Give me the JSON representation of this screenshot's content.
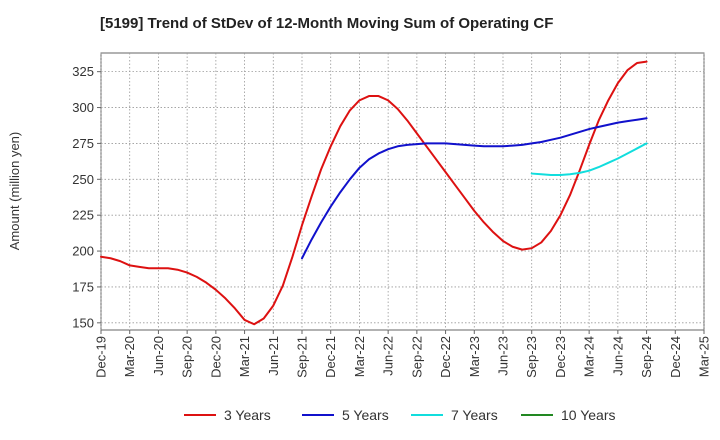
{
  "chart_data": {
    "type": "line",
    "title": "[5199]  Trend of StDev of 12-Month Moving Sum of Operating CF",
    "xlabel": "",
    "ylabel": "Amount (million yen)",
    "ylim": [
      145,
      338
    ],
    "yticks": [
      150,
      175,
      200,
      225,
      250,
      275,
      300,
      325
    ],
    "x_tick_labels": [
      "Dec-19",
      "Mar-20",
      "Jun-20",
      "Sep-20",
      "Dec-20",
      "Mar-21",
      "Jun-21",
      "Sep-21",
      "Dec-21",
      "Mar-22",
      "Jun-22",
      "Sep-22",
      "Dec-22",
      "Mar-23",
      "Jun-23",
      "Sep-23",
      "Dec-23",
      "Mar-24",
      "Jun-24",
      "Sep-24",
      "Dec-24",
      "Mar-25"
    ],
    "x_range": [
      "Dec-19",
      "Mar-25"
    ],
    "grid": true,
    "legend_position": "bottom",
    "series": [
      {
        "name": "3 Years",
        "color": "#dd1111",
        "x": [
          "Dec-19",
          "Jan-20",
          "Feb-20",
          "Mar-20",
          "Apr-20",
          "May-20",
          "Jun-20",
          "Jul-20",
          "Aug-20",
          "Sep-20",
          "Oct-20",
          "Nov-20",
          "Dec-20",
          "Jan-21",
          "Feb-21",
          "Mar-21",
          "Apr-21",
          "May-21",
          "Jun-21",
          "Jul-21",
          "Aug-21",
          "Sep-21",
          "Oct-21",
          "Nov-21",
          "Dec-21",
          "Jan-22",
          "Feb-22",
          "Mar-22",
          "Apr-22",
          "May-22",
          "Jun-22",
          "Jul-22",
          "Aug-22",
          "Sep-22",
          "Oct-22",
          "Nov-22",
          "Dec-22",
          "Jan-23",
          "Feb-23",
          "Mar-23",
          "Apr-23",
          "May-23",
          "Jun-23",
          "Jul-23",
          "Aug-23",
          "Sep-23",
          "Oct-23",
          "Nov-23",
          "Dec-23",
          "Jan-24",
          "Feb-24",
          "Mar-24",
          "Apr-24",
          "May-24",
          "Jun-24",
          "Jul-24",
          "Aug-24",
          "Sep-24"
        ],
        "values": [
          196,
          195,
          193,
          190,
          189,
          188,
          188,
          188,
          187,
          185,
          182,
          178,
          173,
          167,
          160,
          152,
          149,
          153,
          162,
          176,
          196,
          218,
          238,
          257,
          273,
          287,
          298,
          305,
          308,
          308,
          305,
          299,
          291,
          282,
          273,
          264,
          255,
          246,
          237,
          228,
          220,
          213,
          207,
          203,
          201,
          202,
          206,
          214,
          225,
          239,
          256,
          274,
          291,
          305,
          317,
          326,
          331,
          332
        ]
      },
      {
        "name": "5 Years",
        "color": "#1111cc",
        "x": [
          "Sep-21",
          "Oct-21",
          "Nov-21",
          "Dec-21",
          "Jan-22",
          "Feb-22",
          "Mar-22",
          "Apr-22",
          "May-22",
          "Jun-22",
          "Jul-22",
          "Aug-22",
          "Sep-22",
          "Oct-22",
          "Nov-22",
          "Dec-22",
          "Jan-23",
          "Feb-23",
          "Mar-23",
          "Apr-23",
          "May-23",
          "Jun-23",
          "Jul-23",
          "Aug-23",
          "Sep-23",
          "Oct-23",
          "Nov-23",
          "Dec-23",
          "Jan-24",
          "Feb-24",
          "Mar-24",
          "Apr-24",
          "May-24",
          "Jun-24",
          "Jul-24",
          "Aug-24",
          "Sep-24"
        ],
        "values": [
          195,
          208,
          220,
          231,
          241,
          250,
          258,
          264,
          268,
          271,
          273,
          274,
          274.5,
          275,
          275,
          275,
          274.5,
          274,
          273.5,
          273,
          273,
          273,
          273.5,
          274,
          275,
          276,
          277.5,
          279,
          281,
          283,
          285,
          286.5,
          288,
          289.5,
          290.5,
          291.5,
          292.5
        ]
      },
      {
        "name": "7 Years",
        "color": "#11dddd",
        "x": [
          "Sep-23",
          "Oct-23",
          "Nov-23",
          "Dec-23",
          "Jan-24",
          "Feb-24",
          "Mar-24",
          "Apr-24",
          "May-24",
          "Jun-24",
          "Jul-24",
          "Aug-24",
          "Sep-24"
        ],
        "values": [
          254,
          253.5,
          253,
          253,
          253.5,
          254.5,
          256,
          258.5,
          261.5,
          264.5,
          268,
          271.5,
          275
        ]
      },
      {
        "name": "10 Years",
        "color": "#228822",
        "x": [],
        "values": []
      }
    ]
  }
}
